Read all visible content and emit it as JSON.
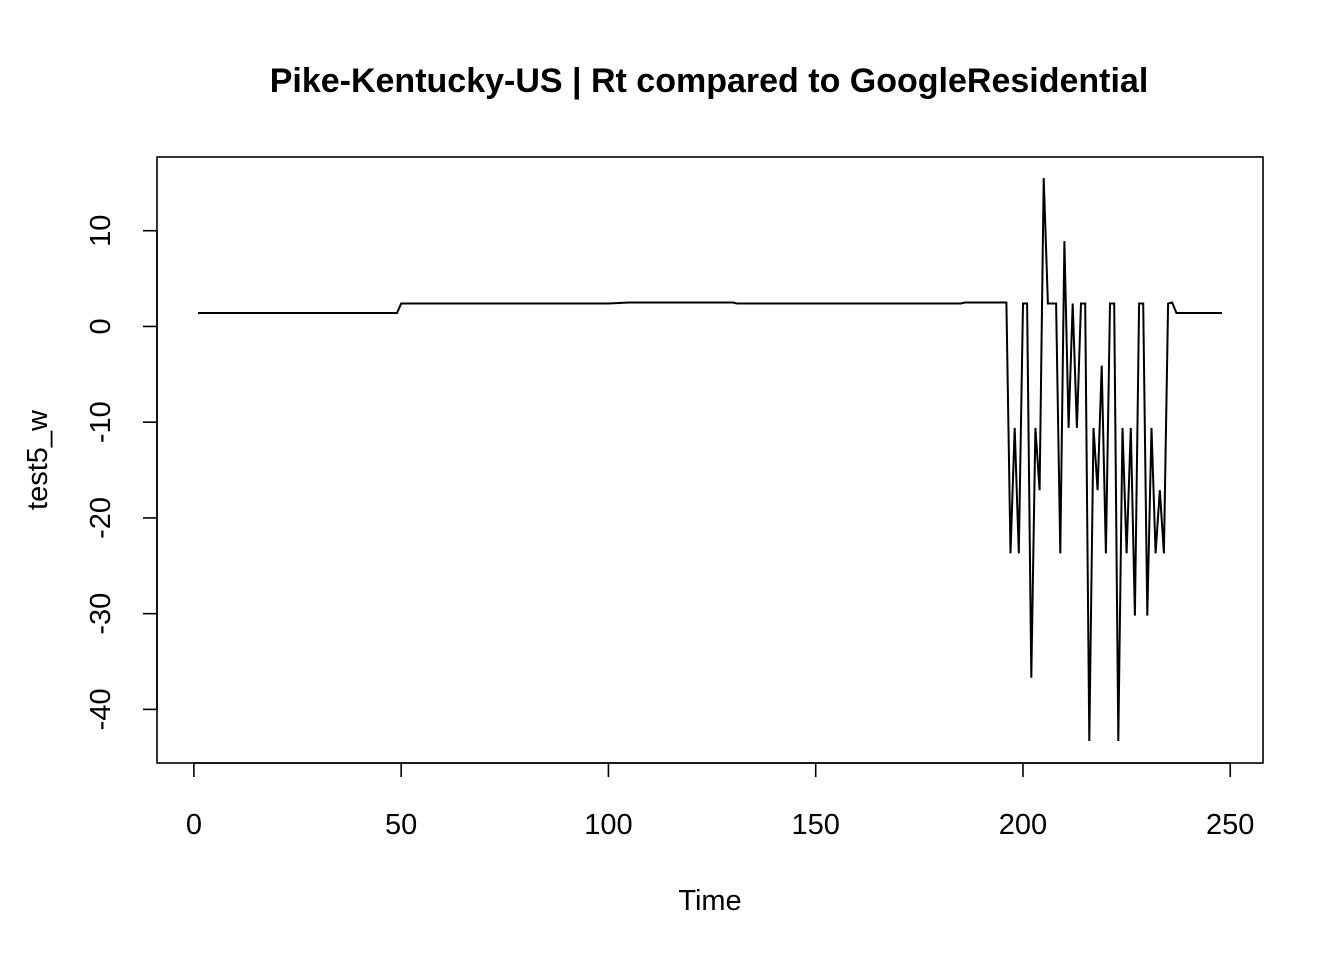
{
  "chart_data": {
    "type": "line",
    "title": "Pike-Kentucky-US | Rt compared to GoogleResidential",
    "xlabel": "Time",
    "ylabel": "test5_w",
    "xlim": [
      -8.9,
      257.9
    ],
    "ylim": [
      -45.6,
      17.7
    ],
    "x_ticks": [
      0,
      50,
      100,
      150,
      200,
      250
    ],
    "x_tick_labels": [
      "0",
      "50",
      "100",
      "150",
      "200",
      "250"
    ],
    "y_ticks": [
      -40,
      -30,
      -20,
      -10,
      0,
      10
    ],
    "y_tick_labels": [
      "-40",
      "-30",
      "-20",
      "-10",
      "0",
      "10"
    ],
    "grid": false,
    "legend": "none",
    "series": [
      {
        "color": "#000000",
        "points": [
          [
            1,
            1.4
          ],
          [
            49,
            1.4
          ],
          [
            50,
            2.4
          ],
          [
            100,
            2.4
          ],
          [
            105,
            2.5
          ],
          [
            130,
            2.5
          ],
          [
            131,
            2.4
          ],
          [
            185,
            2.4
          ],
          [
            186,
            2.5
          ],
          [
            196,
            2.5
          ],
          [
            197,
            -23.7
          ],
          [
            198,
            -10.6
          ],
          [
            199,
            -23.7
          ],
          [
            200,
            2.4
          ],
          [
            201,
            2.4
          ],
          [
            202,
            -36.7
          ],
          [
            203,
            -10.6
          ],
          [
            204,
            -17.1
          ],
          [
            205,
            15.5
          ],
          [
            206,
            2.4
          ],
          [
            208,
            2.4
          ],
          [
            209,
            -23.7
          ],
          [
            210,
            8.9
          ],
          [
            211,
            -10.6
          ],
          [
            212,
            2.4
          ],
          [
            213,
            -10.6
          ],
          [
            214,
            2.4
          ],
          [
            215,
            2.4
          ],
          [
            216,
            -43.3
          ],
          [
            217,
            -10.6
          ],
          [
            218,
            -17.1
          ],
          [
            219,
            -4.1
          ],
          [
            220,
            -23.7
          ],
          [
            221,
            2.4
          ],
          [
            222,
            2.4
          ],
          [
            223,
            -43.3
          ],
          [
            224,
            -10.6
          ],
          [
            225,
            -23.7
          ],
          [
            226,
            -10.6
          ],
          [
            227,
            -30.2
          ],
          [
            228,
            2.4
          ],
          [
            229,
            2.4
          ],
          [
            230,
            -30.2
          ],
          [
            231,
            -10.6
          ],
          [
            232,
            -23.7
          ],
          [
            233,
            -17.1
          ],
          [
            234,
            -23.7
          ],
          [
            235,
            2.4
          ],
          [
            236,
            2.5
          ],
          [
            237,
            1.4
          ],
          [
            248,
            1.4
          ]
        ]
      }
    ]
  }
}
